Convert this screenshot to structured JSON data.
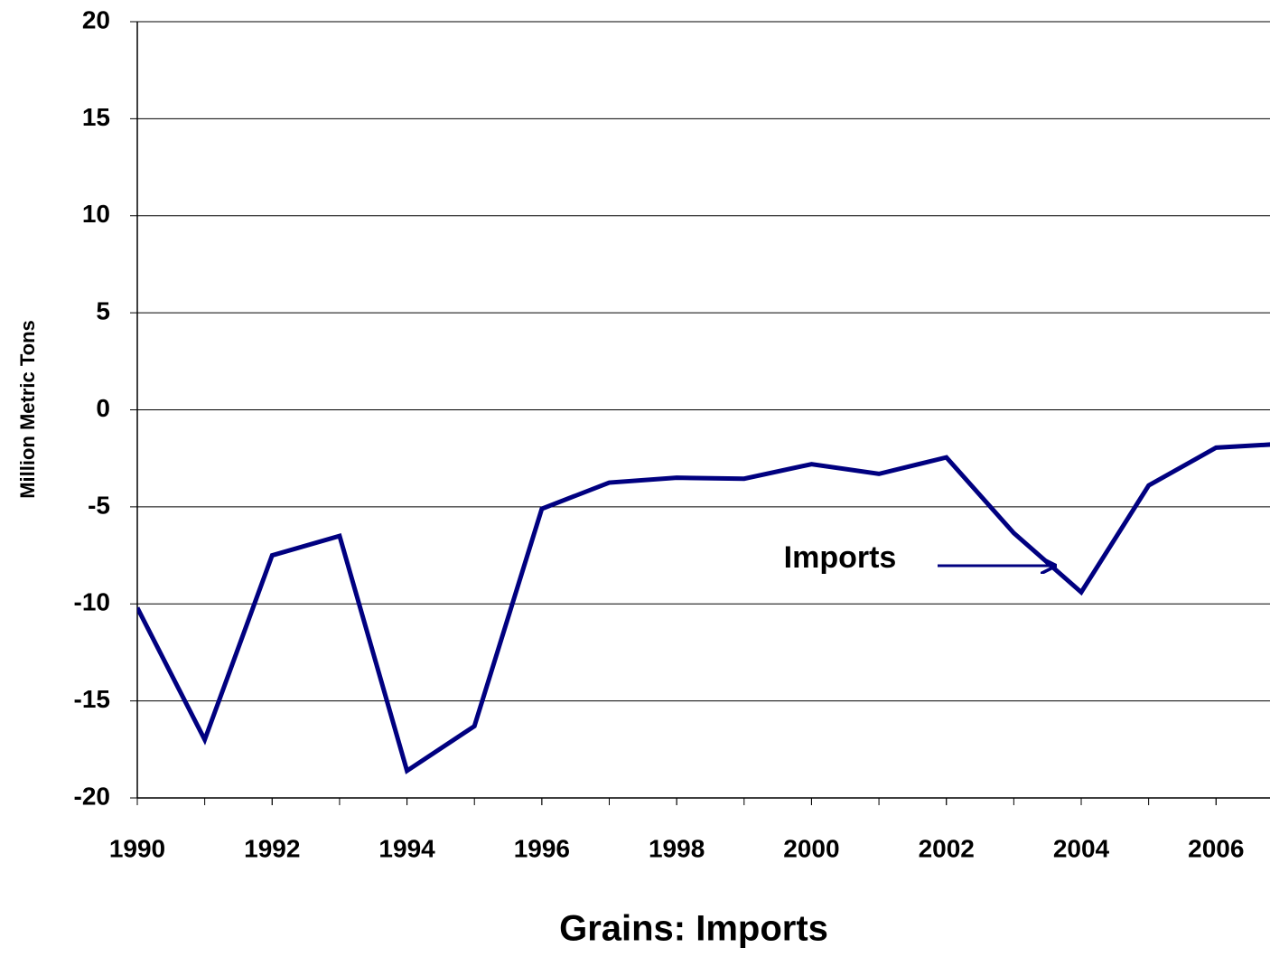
{
  "chart_data": {
    "type": "line",
    "title": "Grains: Imports",
    "y_label": "Million Metric Tons",
    "annotation": "Imports",
    "x": [
      1990,
      1991,
      1992,
      1993,
      1994,
      1995,
      1996,
      1997,
      1998,
      1999,
      2000,
      2001,
      2002,
      2003,
      2004,
      2005,
      2006,
      2007
    ],
    "series": [
      {
        "name": "Imports",
        "color": "#000080",
        "values": [
          -10.2,
          -17.0,
          -7.5,
          -6.5,
          -18.6,
          -16.3,
          -5.1,
          -3.75,
          -3.5,
          -3.55,
          -2.8,
          -3.3,
          -2.45,
          -6.35,
          -9.4,
          -3.9,
          -1.95,
          -1.75
        ]
      }
    ],
    "xlim": [
      1990,
      2006.8
    ],
    "xticks": [
      1990,
      1992,
      1994,
      1996,
      1998,
      2000,
      2002,
      2004,
      2006
    ],
    "ylim": [
      -20,
      20
    ],
    "yticks": [
      -20,
      -15,
      -10,
      -5,
      0,
      5,
      10,
      15,
      20
    ],
    "grid": true
  }
}
